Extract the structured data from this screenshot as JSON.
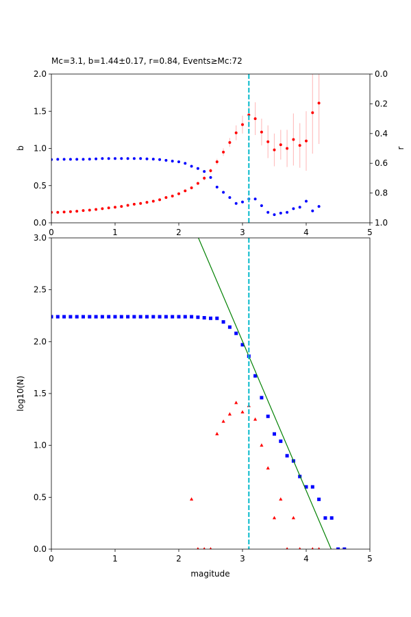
{
  "chart_data": [
    {
      "type": "scatter",
      "title": "Mc=3.1, b=1.44±0.17, r=0.84, Events≥Mc:72",
      "y_label": "b",
      "y2_label": "r",
      "xlim": [
        0,
        5
      ],
      "xticks": [
        0,
        1,
        2,
        3,
        4,
        5
      ],
      "ylim": [
        0,
        2
      ],
      "yticks": [
        {
          "value": 0,
          "label": "0.0"
        },
        {
          "value": 0.5,
          "label": "0.5"
        },
        {
          "value": 1,
          "label": "1.0"
        },
        {
          "value": 1.5,
          "label": "1.5"
        },
        {
          "value": 2,
          "label": "2.0"
        }
      ],
      "y2lim": [
        1,
        0
      ],
      "y2ticks": [
        {
          "value": 0,
          "label": "0.0"
        },
        {
          "value": 0.2,
          "label": "0.2"
        },
        {
          "value": 0.4,
          "label": "0.4"
        },
        {
          "value": 0.6,
          "label": "0.6"
        },
        {
          "value": 0.8,
          "label": "0.8"
        },
        {
          "value": 1,
          "label": "1.0"
        }
      ],
      "vline": 3.1,
      "vline_color": "#17becf",
      "series": [
        {
          "color": "#ff0000",
          "marker": "circle",
          "error_color": "#ffc0c0",
          "x": [
            0,
            0.1,
            0.2,
            0.3,
            0.4,
            0.5,
            0.6,
            0.7,
            0.8,
            0.9,
            1.0,
            1.1,
            1.2,
            1.3,
            1.4,
            1.5,
            1.6,
            1.7,
            1.8,
            1.9,
            2.0,
            2.1,
            2.2,
            2.3,
            2.4,
            2.5,
            2.6,
            2.7,
            2.8,
            2.9,
            3.0,
            3.1,
            3.2,
            3.3,
            3.4,
            3.5,
            3.6,
            3.7,
            3.8,
            3.9,
            4.0,
            4.1,
            4.2
          ],
          "values": [
            0.14,
            0.14,
            0.145,
            0.15,
            0.155,
            0.165,
            0.17,
            0.18,
            0.19,
            0.2,
            0.21,
            0.22,
            0.235,
            0.25,
            0.26,
            0.275,
            0.29,
            0.31,
            0.34,
            0.36,
            0.39,
            0.43,
            0.47,
            0.53,
            0.6,
            0.7,
            0.82,
            0.95,
            1.08,
            1.21,
            1.32,
            1.45,
            1.4,
            1.22,
            1.09,
            0.98,
            1.05,
            1.0,
            1.12,
            1.04,
            1.1,
            1.48,
            1.61
          ],
          "errors": [
            0.01,
            0.01,
            0.01,
            0.01,
            0.01,
            0.01,
            0.01,
            0.01,
            0.01,
            0.01,
            0.01,
            0.01,
            0.01,
            0.01,
            0.01,
            0.01,
            0.01,
            0.01,
            0.01,
            0.01,
            0.01,
            0.015,
            0.02,
            0.02,
            0.03,
            0.03,
            0.04,
            0.05,
            0.06,
            0.1,
            0.12,
            0.17,
            0.22,
            0.18,
            0.22,
            0.22,
            0.2,
            0.25,
            0.35,
            0.3,
            0.4,
            0.55,
            0.55
          ]
        },
        {
          "color": "#0000ff",
          "marker": "circle",
          "axis": "y2",
          "x": [
            0,
            0.1,
            0.2,
            0.3,
            0.4,
            0.5,
            0.6,
            0.7,
            0.8,
            0.9,
            1.0,
            1.1,
            1.2,
            1.3,
            1.4,
            1.5,
            1.6,
            1.7,
            1.8,
            1.9,
            2.0,
            2.1,
            2.2,
            2.3,
            2.4,
            2.5,
            2.6,
            2.7,
            2.8,
            2.9,
            3.0,
            3.1,
            3.2,
            3.3,
            3.4,
            3.5,
            3.6,
            3.7,
            3.8,
            3.9,
            4.0,
            4.1,
            4.2
          ],
          "values": [
            0.575,
            0.573,
            0.573,
            0.573,
            0.573,
            0.573,
            0.572,
            0.57,
            0.568,
            0.568,
            0.568,
            0.568,
            0.568,
            0.568,
            0.568,
            0.57,
            0.572,
            0.575,
            0.58,
            0.585,
            0.59,
            0.6,
            0.62,
            0.635,
            0.655,
            0.695,
            0.76,
            0.795,
            0.83,
            0.87,
            0.86,
            0.84,
            0.84,
            0.885,
            0.93,
            0.945,
            0.935,
            0.93,
            0.905,
            0.895,
            0.855,
            0.92,
            0.89
          ]
        }
      ]
    },
    {
      "type": "scatter",
      "x_label": "magitude",
      "y_label": "log10(N)",
      "xlim": [
        0,
        5
      ],
      "xticks": [
        0,
        1,
        2,
        3,
        4,
        5
      ],
      "ylim": [
        0,
        3
      ],
      "yticks": [
        {
          "value": 0,
          "label": "0.0"
        },
        {
          "value": 0.5,
          "label": "0.5"
        },
        {
          "value": 1,
          "label": "1.0"
        },
        {
          "value": 1.5,
          "label": "1.5"
        },
        {
          "value": 2,
          "label": "2.0"
        },
        {
          "value": 2.5,
          "label": "2.5"
        },
        {
          "value": 3,
          "label": "3.0"
        }
      ],
      "vline": 3.1,
      "vline_color": "#17becf",
      "series": [
        {
          "color": "#0000ff",
          "marker": "square",
          "x": [
            0,
            0.1,
            0.2,
            0.3,
            0.4,
            0.5,
            0.6,
            0.7,
            0.8,
            0.9,
            1.0,
            1.1,
            1.2,
            1.3,
            1.4,
            1.5,
            1.6,
            1.7,
            1.8,
            1.9,
            2.0,
            2.1,
            2.2,
            2.3,
            2.4,
            2.5,
            2.6,
            2.7,
            2.8,
            2.9,
            3.0,
            3.1,
            3.2,
            3.3,
            3.4,
            3.5,
            3.6,
            3.7,
            3.8,
            3.9,
            4.0,
            4.1,
            4.2,
            4.3,
            4.4,
            4.5,
            4.6
          ],
          "values": [
            2.24,
            2.24,
            2.24,
            2.24,
            2.24,
            2.24,
            2.24,
            2.24,
            2.24,
            2.24,
            2.24,
            2.24,
            2.24,
            2.24,
            2.24,
            2.24,
            2.24,
            2.24,
            2.24,
            2.24,
            2.24,
            2.24,
            2.24,
            2.235,
            2.23,
            2.225,
            2.225,
            2.19,
            2.14,
            2.08,
            1.97,
            1.86,
            1.67,
            1.46,
            1.28,
            1.11,
            1.04,
            0.9,
            0.85,
            0.7,
            0.6,
            0.6,
            0.48,
            0.3,
            0.3,
            0,
            0
          ]
        },
        {
          "color": "#ff0000",
          "marker": "triangle",
          "x": [
            2.2,
            2.3,
            2.4,
            2.5,
            2.6,
            2.7,
            2.8,
            2.9,
            3.0,
            3.1,
            3.2,
            3.3,
            3.4,
            3.5,
            3.6,
            3.7,
            3.8,
            3.9,
            4.1,
            4.2
          ],
          "values": [
            0.48,
            0,
            0,
            0,
            1.11,
            1.23,
            1.3,
            1.41,
            1.32,
            1.38,
            1.25,
            1.0,
            0.78,
            0.3,
            0.48,
            0,
            0.3,
            0,
            0,
            0
          ]
        },
        {
          "color": "#008000",
          "marker": "line",
          "x": [
            2.308,
            4.392
          ],
          "values": [
            3,
            0
          ]
        }
      ]
    }
  ]
}
